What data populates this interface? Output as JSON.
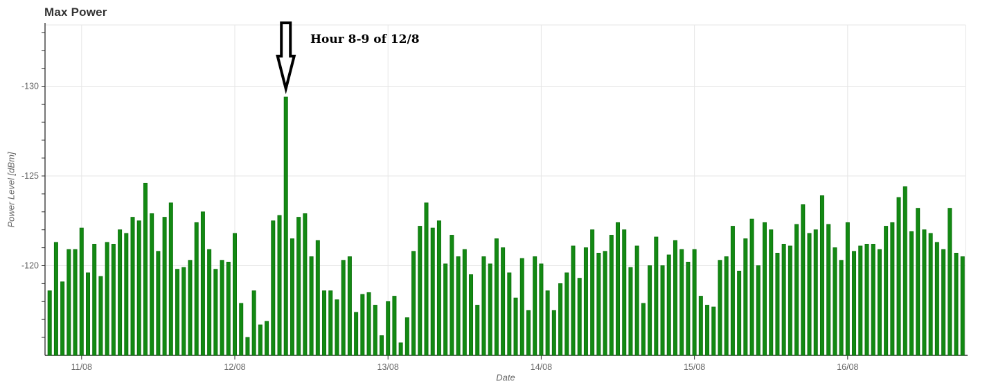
{
  "chart_data": {
    "type": "bar",
    "title": "Max Power",
    "xlabel": "Date",
    "ylabel": "Power Level [dBm]",
    "unit": "dBm",
    "y_reversed": true,
    "ylim": [
      -115,
      -133.5
    ],
    "y_gridline_values": [
      -130,
      -125,
      -120
    ],
    "y_ticks": [
      {
        "value": -130,
        "label": "-130"
      },
      {
        "value": -125,
        "label": "-125"
      },
      {
        "value": -120,
        "label": "-120"
      }
    ],
    "y_minor_tick_range": [
      -133,
      -116
    ],
    "x_ticks": [
      {
        "label": "11/08",
        "bar_index": 5
      },
      {
        "label": "12/08",
        "bar_index": 29
      },
      {
        "label": "13/08",
        "bar_index": 53
      },
      {
        "label": "14/08",
        "bar_index": 77
      },
      {
        "label": "15/08",
        "bar_index": 101
      },
      {
        "label": "16/08",
        "bar_index": 125
      }
    ],
    "x_interval": "1 hour per bar",
    "values": [
      -118.6,
      -121.3,
      -119.1,
      -120.9,
      -120.9,
      -122.1,
      -119.6,
      -121.2,
      -119.4,
      -121.3,
      -121.2,
      -122.0,
      -121.8,
      -122.7,
      -122.5,
      -124.6,
      -122.9,
      -120.8,
      -122.7,
      -123.5,
      -119.8,
      -119.9,
      -120.3,
      -122.4,
      -123.0,
      -120.9,
      -119.8,
      -120.3,
      -120.2,
      -121.8,
      -117.9,
      -116.0,
      -118.6,
      -116.7,
      -116.9,
      -122.5,
      -122.8,
      -129.4,
      -121.5,
      -122.7,
      -122.9,
      -120.5,
      -121.4,
      -118.6,
      -118.6,
      -118.1,
      -120.3,
      -120.5,
      -117.4,
      -118.4,
      -118.5,
      -117.8,
      -116.1,
      -118.0,
      -118.3,
      -115.7,
      -117.1,
      -120.8,
      -122.2,
      -123.5,
      -122.1,
      -122.5,
      -120.1,
      -121.7,
      -120.5,
      -120.9,
      -119.5,
      -117.8,
      -120.5,
      -120.1,
      -121.5,
      -121.0,
      -119.6,
      -118.2,
      -120.4,
      -117.5,
      -120.5,
      -120.1,
      -118.6,
      -117.5,
      -119.0,
      -119.6,
      -121.1,
      -119.3,
      -121.0,
      -122.0,
      -120.7,
      -120.8,
      -121.7,
      -122.4,
      -122.0,
      -119.9,
      -121.1,
      -117.9,
      -120.0,
      -121.6,
      -120.0,
      -120.6,
      -121.4,
      -120.9,
      -120.2,
      -120.9,
      -118.3,
      -117.8,
      -117.7,
      -120.3,
      -120.5,
      -122.2,
      -119.7,
      -121.5,
      -122.6,
      -120.0,
      -122.4,
      -122.0,
      -120.7,
      -121.2,
      -121.1,
      -122.3,
      -123.4,
      -121.8,
      -122.0,
      -123.9,
      -122.3,
      -121.0,
      -120.3,
      -122.4,
      -120.8,
      -121.1,
      -121.2,
      -121.2,
      -120.9,
      -122.2,
      -122.4,
      -123.8,
      -124.4,
      -121.9,
      -123.2,
      -122.0,
      -121.8,
      -121.3,
      -120.9,
      -123.2,
      -120.7,
      -120.5
    ],
    "annotation": {
      "text": "Hour 8-9 of 12/8",
      "target_bar_index": 37,
      "target_value": -129.4
    },
    "legend": "none",
    "grid": "on"
  },
  "colors": {
    "bar_fill": "#138913",
    "bar_stroke": "#0b700b",
    "grid": "#e6e6e6",
    "axis_line": "#2b2b2b",
    "tick_mark": "#333333",
    "tick_label": "#666666",
    "title": "#333333",
    "annotation": "#000000",
    "arrow_fill": "#ffffff",
    "arrow_stroke": "#000000"
  }
}
